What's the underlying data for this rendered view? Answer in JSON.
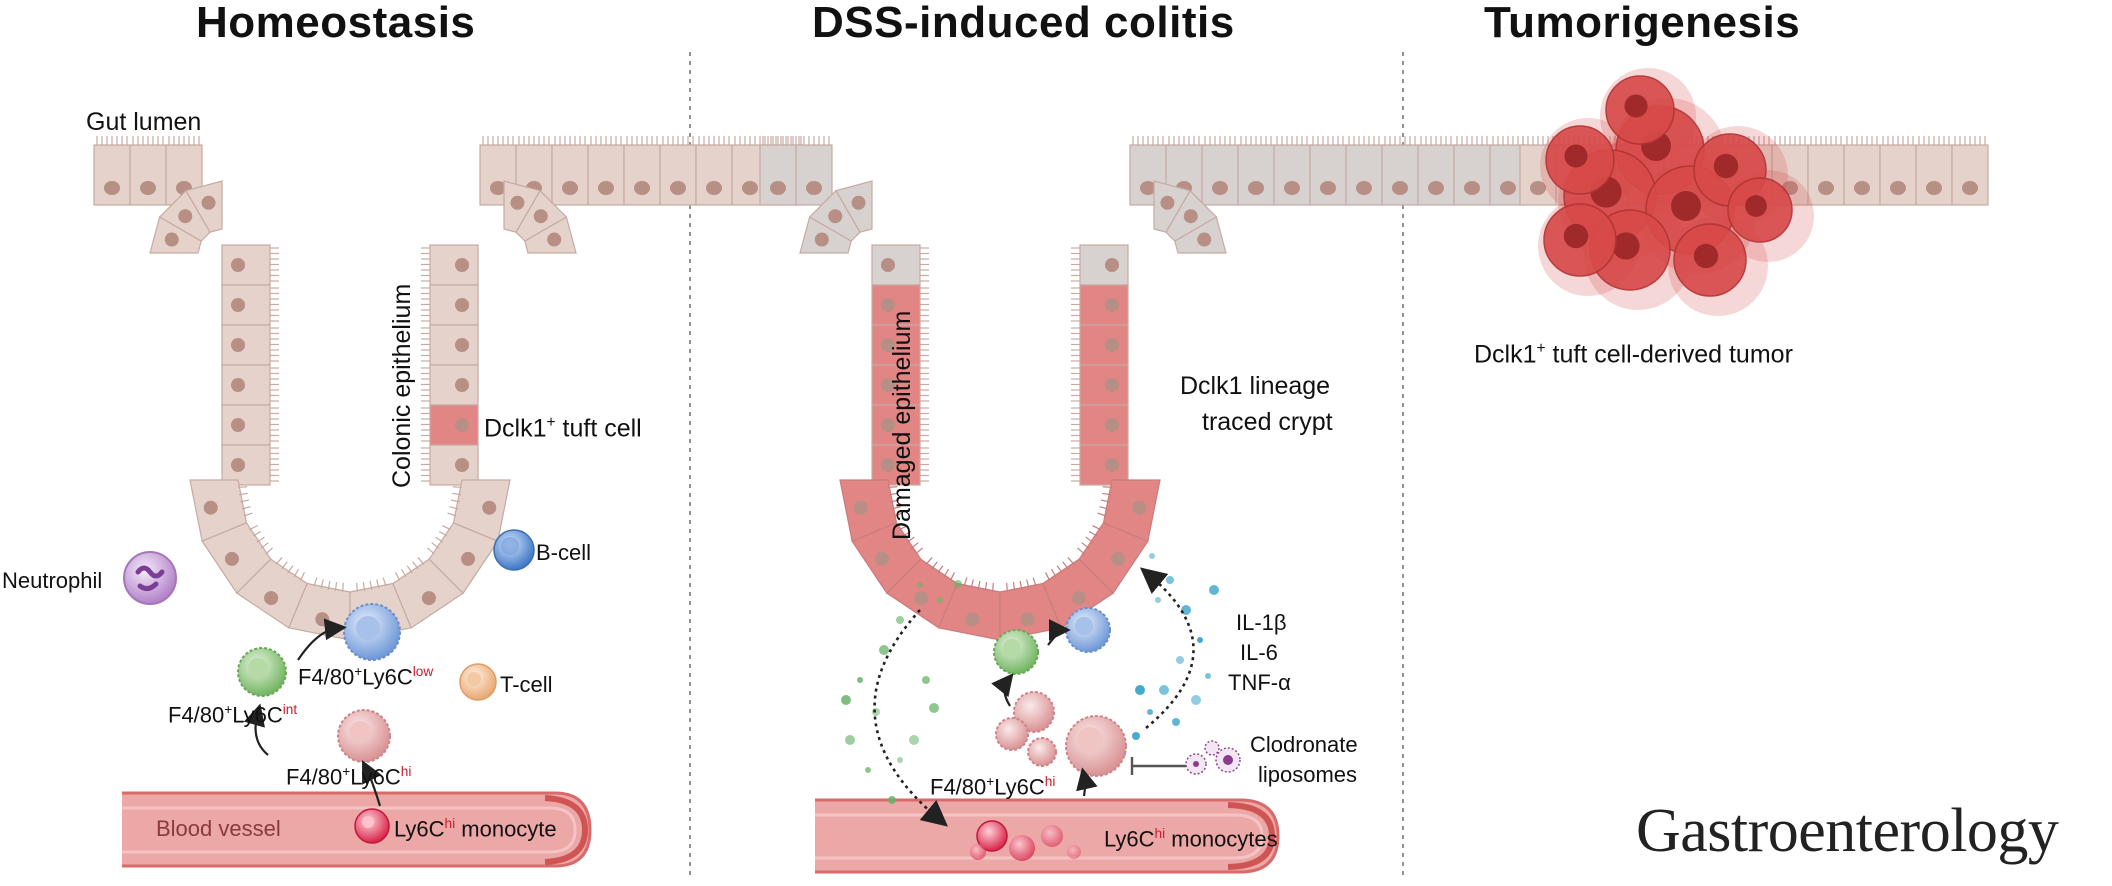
{
  "panels": {
    "homeostasis": "Homeostasis",
    "colitis": "DSS-induced colitis",
    "tumorigenesis": "Tumorigenesis"
  },
  "labels": {
    "gut_lumen": "Gut lumen",
    "colonic_epithelium": "Colonic epithelium",
    "tuft_cell_prefix": "Dclk1",
    "tuft_cell_sup": "+",
    "tuft_cell_suffix": " tuft cell",
    "b_cell": "B-cell",
    "neutrophil": "Neutrophil",
    "t_cell": "T-cell",
    "f480_prefix": "F4/80",
    "f480_sup": "+",
    "ly6c": "Ly6C",
    "low": "low",
    "int": "int",
    "hi": "hi",
    "blood_vessel": "Blood vessel",
    "ly6c_monocyte_suffix": " monocyte",
    "ly6c_monocytes_suffix": " monocytes",
    "damaged_epithelium": "Damaged epithelium",
    "lineage_line1": "Dclk1 lineage",
    "lineage_line2": "traced crypt",
    "il1b": "IL-1β",
    "il6": "IL-6",
    "tnfa": "TNF-α",
    "clodronate_line1": "Clodronate",
    "clodronate_line2": "liposomes",
    "tumor_suffix": " tuft cell-derived tumor",
    "journal": "Gastroenterology"
  },
  "colors": {
    "epithelium_fill": "#e4d2cb",
    "epithelium_grey": "#d7d2cf",
    "nucleus": "#b78f85",
    "tuft_red": "#e28585",
    "vessel": "#ea9c9c",
    "vessel_dark": "#d86a6a",
    "tumor": "#d84a4a",
    "accent_red": "#c8202c"
  }
}
